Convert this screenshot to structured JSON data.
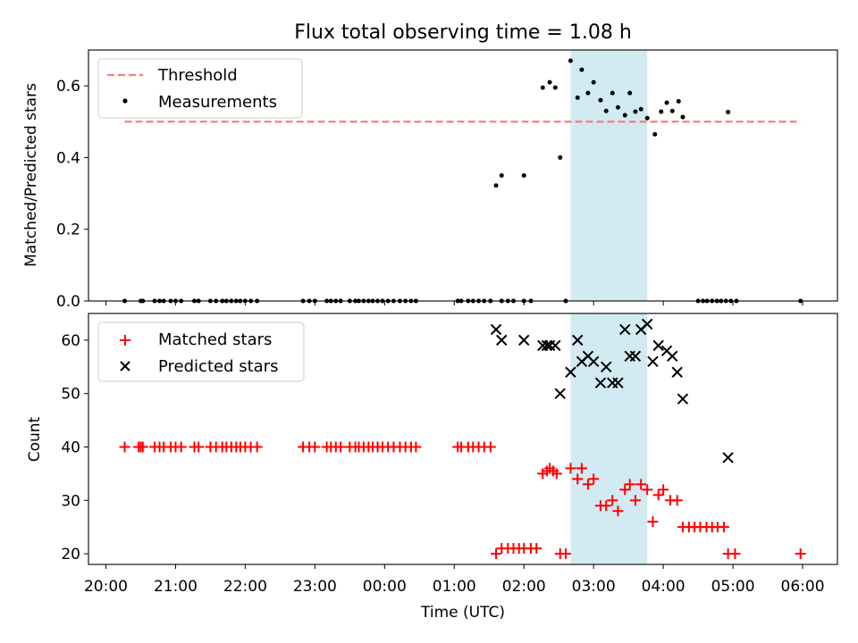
{
  "title": "Flux total observing time = 1.08 h",
  "colors": {
    "threshold": "#ff7b7b",
    "measurement": "#000000",
    "matched": "#ff0000",
    "predicted": "#000000",
    "window": "#add8e6"
  },
  "chart_data": [
    {
      "type": "scatter",
      "ylabel": "Matched/Predicted stars",
      "xlim": [
        -0.25,
        10.5
      ],
      "ylim": [
        0,
        0.7
      ],
      "yticks": [
        0.0,
        0.2,
        0.4,
        0.6
      ],
      "ytick_labels": [
        "0.0",
        "0.2",
        "0.4",
        "0.6"
      ],
      "grid": false,
      "legend_position": "top-left",
      "highlight_span": [
        6.67,
        7.77
      ],
      "threshold": {
        "name": "Threshold",
        "y": 0.5,
        "x": [
          0.27,
          9.97
        ],
        "style": "dashed"
      },
      "series": [
        {
          "name": "Measurements",
          "marker": "dot",
          "points": [
            [
              0.27,
              0
            ],
            [
              0.5,
              0
            ],
            [
              0.53,
              0
            ],
            [
              0.7,
              0
            ],
            [
              0.77,
              0
            ],
            [
              0.83,
              0
            ],
            [
              0.93,
              0
            ],
            [
              1.0,
              0
            ],
            [
              1.08,
              0
            ],
            [
              1.27,
              0
            ],
            [
              1.33,
              0
            ],
            [
              1.5,
              0
            ],
            [
              1.58,
              0
            ],
            [
              1.67,
              0
            ],
            [
              1.73,
              0
            ],
            [
              1.8,
              0
            ],
            [
              1.87,
              0
            ],
            [
              1.93,
              0
            ],
            [
              2.0,
              0
            ],
            [
              2.08,
              0
            ],
            [
              2.17,
              0
            ],
            [
              2.83,
              0
            ],
            [
              2.92,
              0
            ],
            [
              3.0,
              0
            ],
            [
              3.17,
              0
            ],
            [
              3.23,
              0
            ],
            [
              3.3,
              0
            ],
            [
              3.37,
              0
            ],
            [
              3.5,
              0
            ],
            [
              3.58,
              0
            ],
            [
              3.63,
              0
            ],
            [
              3.7,
              0
            ],
            [
              3.77,
              0
            ],
            [
              3.83,
              0
            ],
            [
              3.9,
              0
            ],
            [
              3.97,
              0
            ],
            [
              4.05,
              0
            ],
            [
              4.13,
              0
            ],
            [
              4.22,
              0
            ],
            [
              4.3,
              0
            ],
            [
              4.38,
              0
            ],
            [
              4.45,
              0
            ],
            [
              5.05,
              0
            ],
            [
              5.1,
              0
            ],
            [
              5.2,
              0
            ],
            [
              5.27,
              0
            ],
            [
              5.35,
              0
            ],
            [
              5.43,
              0
            ],
            [
              5.52,
              0
            ],
            [
              5.68,
              0
            ],
            [
              5.77,
              0
            ],
            [
              5.85,
              0
            ],
            [
              6.0,
              0
            ],
            [
              6.1,
              0
            ],
            [
              6.6,
              0
            ],
            [
              8.5,
              0
            ],
            [
              8.57,
              0
            ],
            [
              8.63,
              0
            ],
            [
              8.7,
              0
            ],
            [
              8.77,
              0
            ],
            [
              8.83,
              0
            ],
            [
              8.9,
              0
            ],
            [
              8.97,
              0
            ],
            [
              9.05,
              0
            ],
            [
              9.97,
              0
            ],
            [
              5.6,
              0.322
            ],
            [
              5.68,
              0.35
            ],
            [
              6.0,
              0.35
            ],
            [
              6.27,
              0.595
            ],
            [
              6.37,
              0.61
            ],
            [
              6.45,
              0.595
            ],
            [
              6.52,
              0.4
            ],
            [
              6.67,
              0.67
            ],
            [
              6.77,
              0.567
            ],
            [
              6.83,
              0.645
            ],
            [
              6.92,
              0.58
            ],
            [
              7.0,
              0.61
            ],
            [
              7.1,
              0.56
            ],
            [
              7.18,
              0.53
            ],
            [
              7.27,
              0.58
            ],
            [
              7.35,
              0.54
            ],
            [
              7.45,
              0.518
            ],
            [
              7.52,
              0.58
            ],
            [
              7.6,
              0.528
            ],
            [
              7.68,
              0.535
            ],
            [
              7.77,
              0.51
            ],
            [
              7.88,
              0.465
            ],
            [
              7.97,
              0.528
            ],
            [
              8.05,
              0.553
            ],
            [
              8.13,
              0.53
            ],
            [
              8.22,
              0.557
            ],
            [
              8.28,
              0.513
            ],
            [
              8.93,
              0.527
            ]
          ]
        }
      ]
    },
    {
      "type": "scatter",
      "xlabel": "Time (UTC)",
      "ylabel": "Count",
      "xlim": [
        -0.25,
        10.5
      ],
      "ylim": [
        18,
        65
      ],
      "yticks": [
        20,
        30,
        40,
        50,
        60
      ],
      "ytick_labels": [
        "20",
        "30",
        "40",
        "50",
        "60"
      ],
      "xticks": [
        0,
        1,
        2,
        3,
        4,
        5,
        6,
        7,
        8,
        9,
        10
      ],
      "xtick_labels": [
        "20:00",
        "21:00",
        "22:00",
        "23:00",
        "00:00",
        "01:00",
        "02:00",
        "03:00",
        "04:00",
        "05:00",
        "06:00"
      ],
      "grid": false,
      "legend_position": "top-left",
      "highlight_span": [
        6.67,
        7.77
      ],
      "series": [
        {
          "name": "Matched stars",
          "marker": "plus",
          "points": [
            [
              0.27,
              40
            ],
            [
              0.47,
              40
            ],
            [
              0.5,
              40
            ],
            [
              0.53,
              40
            ],
            [
              0.7,
              40
            ],
            [
              0.77,
              40
            ],
            [
              0.83,
              40
            ],
            [
              0.93,
              40
            ],
            [
              1.0,
              40
            ],
            [
              1.08,
              40
            ],
            [
              1.27,
              40
            ],
            [
              1.33,
              40
            ],
            [
              1.5,
              40
            ],
            [
              1.58,
              40
            ],
            [
              1.67,
              40
            ],
            [
              1.73,
              40
            ],
            [
              1.8,
              40
            ],
            [
              1.87,
              40
            ],
            [
              1.93,
              40
            ],
            [
              2.0,
              40
            ],
            [
              2.08,
              40
            ],
            [
              2.17,
              40
            ],
            [
              2.83,
              40
            ],
            [
              2.92,
              40
            ],
            [
              3.0,
              40
            ],
            [
              3.17,
              40
            ],
            [
              3.23,
              40
            ],
            [
              3.3,
              40
            ],
            [
              3.37,
              40
            ],
            [
              3.5,
              40
            ],
            [
              3.58,
              40
            ],
            [
              3.63,
              40
            ],
            [
              3.7,
              40
            ],
            [
              3.77,
              40
            ],
            [
              3.83,
              40
            ],
            [
              3.9,
              40
            ],
            [
              3.97,
              40
            ],
            [
              4.05,
              40
            ],
            [
              4.13,
              40
            ],
            [
              4.22,
              40
            ],
            [
              4.3,
              40
            ],
            [
              4.38,
              40
            ],
            [
              4.45,
              40
            ],
            [
              5.05,
              40
            ],
            [
              5.1,
              40
            ],
            [
              5.2,
              40
            ],
            [
              5.27,
              40
            ],
            [
              5.35,
              40
            ],
            [
              5.43,
              40
            ],
            [
              5.52,
              40
            ],
            [
              5.6,
              20
            ],
            [
              5.68,
              21
            ],
            [
              5.77,
              21
            ],
            [
              5.85,
              21
            ],
            [
              5.93,
              21
            ],
            [
              6.0,
              21
            ],
            [
              6.1,
              21
            ],
            [
              6.18,
              21
            ],
            [
              6.27,
              35
            ],
            [
              6.33,
              35.5
            ],
            [
              6.37,
              36
            ],
            [
              6.42,
              35.5
            ],
            [
              6.47,
              35
            ],
            [
              6.52,
              20
            ],
            [
              6.6,
              20
            ],
            [
              6.67,
              36
            ],
            [
              6.77,
              34
            ],
            [
              6.83,
              36
            ],
            [
              6.92,
              33
            ],
            [
              7.0,
              34
            ],
            [
              7.1,
              29
            ],
            [
              7.18,
              29
            ],
            [
              7.27,
              30
            ],
            [
              7.35,
              28
            ],
            [
              7.45,
              32
            ],
            [
              7.52,
              33
            ],
            [
              7.6,
              30
            ],
            [
              7.68,
              33
            ],
            [
              7.77,
              32
            ],
            [
              7.85,
              26
            ],
            [
              7.93,
              31
            ],
            [
              8.0,
              32
            ],
            [
              8.1,
              30
            ],
            [
              8.2,
              30
            ],
            [
              8.28,
              25
            ],
            [
              8.37,
              25
            ],
            [
              8.45,
              25
            ],
            [
              8.53,
              25
            ],
            [
              8.62,
              25
            ],
            [
              8.7,
              25
            ],
            [
              8.78,
              25
            ],
            [
              8.87,
              25
            ],
            [
              8.93,
              20
            ],
            [
              9.03,
              20
            ],
            [
              9.97,
              20
            ]
          ]
        },
        {
          "name": "Predicted stars",
          "marker": "x",
          "points": [
            [
              5.6,
              62
            ],
            [
              5.68,
              60
            ],
            [
              6.0,
              60
            ],
            [
              6.27,
              59
            ],
            [
              6.33,
              59
            ],
            [
              6.37,
              59
            ],
            [
              6.45,
              59
            ],
            [
              6.52,
              50
            ],
            [
              6.67,
              54
            ],
            [
              6.77,
              60
            ],
            [
              6.83,
              56
            ],
            [
              6.92,
              57
            ],
            [
              7.0,
              56
            ],
            [
              7.1,
              52
            ],
            [
              7.18,
              55
            ],
            [
              7.27,
              52
            ],
            [
              7.35,
              52
            ],
            [
              7.45,
              62
            ],
            [
              7.52,
              57
            ],
            [
              7.6,
              57
            ],
            [
              7.68,
              62
            ],
            [
              7.77,
              63
            ],
            [
              7.85,
              56
            ],
            [
              7.93,
              59
            ],
            [
              8.05,
              58
            ],
            [
              8.13,
              57
            ],
            [
              8.2,
              54
            ],
            [
              8.28,
              49
            ],
            [
              8.93,
              38
            ]
          ]
        }
      ]
    }
  ]
}
